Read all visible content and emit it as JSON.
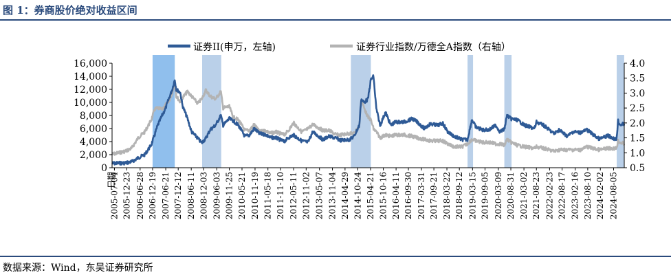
{
  "figure_title": "图 1：券商股价绝对收益区间",
  "source_note": "数据来源：Wind，东吴证券研究所",
  "colors": {
    "title": "#2a4a7c",
    "series_left": "#2e5a96",
    "series_right": "#b3b3b3",
    "band": "#a9c4e3",
    "band_strong": "#7db4ea"
  },
  "chart_data": {
    "type": "line",
    "title": "",
    "xlabel": "日期",
    "y_left": {
      "label": "",
      "ylim": [
        0,
        16000
      ],
      "ticks": [
        "0",
        "2,000",
        "4,000",
        "6,000",
        "8,000",
        "10,000",
        "12,000",
        "14,000",
        "16,000"
      ]
    },
    "y_right": {
      "label": "",
      "ylim": [
        0.5,
        4.0
      ],
      "ticks": [
        "0.5",
        "1.0",
        "1.5",
        "2.0",
        "2.5",
        "3.0",
        "3.5",
        "4.0"
      ]
    },
    "x_range": [
      "2005-06-01",
      "2025-01-01"
    ],
    "x_ticks": [
      "2005-07-04",
      "2005-12-23",
      "2006-06-28",
      "2006-12-19",
      "2007-06-21",
      "2007-12-12",
      "2008-06-11",
      "2008-12-03",
      "2009-06-03",
      "2009-11-25",
      "2010-05-21",
      "2010-11-19",
      "2011-05-18",
      "2011-11-10",
      "2012-05-11",
      "2012-11-02",
      "2013-05-07",
      "2013-11-04",
      "2014-04-29",
      "2014-10-24",
      "2015-04-21",
      "2015-10-16",
      "2016-04-11",
      "2016-09-30",
      "2017-03-31",
      "2017-09-21",
      "2018-03-22",
      "2018-09-12",
      "2019-03-15",
      "2019-09-05",
      "2020-03-09",
      "2020-08-31",
      "2021-03-02",
      "2021-08-23",
      "2022-02-23",
      "2022-08-17",
      "2023-02-16",
      "2023-08-10",
      "2024-02-02",
      "2024-08-05"
    ],
    "legend": {
      "position": "top",
      "entries": [
        "证券II(申万，左轴)",
        "证券行业指数/万德全A指数（右轴）"
      ]
    },
    "shaded_periods": [
      {
        "start": "2006-12-19",
        "end": "2007-10-25"
      },
      {
        "start": "2008-11-10",
        "end": "2009-08-04"
      },
      {
        "start": "2014-07-20",
        "end": "2015-04-25"
      },
      {
        "start": "2019-01-04",
        "end": "2019-03-22"
      },
      {
        "start": "2020-06-01",
        "end": "2020-09-10"
      },
      {
        "start": "2024-09-18",
        "end": "2024-12-31"
      }
    ],
    "series": [
      {
        "name": "证券II(申万，左轴)",
        "axis": "left",
        "points": [
          [
            "2005-06-01",
            650
          ],
          [
            "2005-09-01",
            700
          ],
          [
            "2005-12-01",
            720
          ],
          [
            "2006-03-01",
            900
          ],
          [
            "2006-06-01",
            1500
          ],
          [
            "2006-09-01",
            2000
          ],
          [
            "2006-12-01",
            3500
          ],
          [
            "2007-01-15",
            5000
          ],
          [
            "2007-03-01",
            6500
          ],
          [
            "2007-05-01",
            8000
          ],
          [
            "2007-06-15",
            9000
          ],
          [
            "2007-08-01",
            10500
          ],
          [
            "2007-09-20",
            12000
          ],
          [
            "2007-10-25",
            13500
          ],
          [
            "2007-11-15",
            12000
          ],
          [
            "2008-01-10",
            11500
          ],
          [
            "2008-02-10",
            9500
          ],
          [
            "2008-04-20",
            7500
          ],
          [
            "2008-06-15",
            5500
          ],
          [
            "2008-09-10",
            4500
          ],
          [
            "2008-11-04",
            3800
          ],
          [
            "2009-01-01",
            4500
          ],
          [
            "2009-03-01",
            5800
          ],
          [
            "2009-05-15",
            6500
          ],
          [
            "2009-07-30",
            8000
          ],
          [
            "2009-08-30",
            6500
          ],
          [
            "2009-11-25",
            7500
          ],
          [
            "2010-01-15",
            7200
          ],
          [
            "2010-04-01",
            6500
          ],
          [
            "2010-06-30",
            4800
          ],
          [
            "2010-09-01",
            5000
          ],
          [
            "2010-11-08",
            6000
          ],
          [
            "2011-01-20",
            5200
          ],
          [
            "2011-04-15",
            5100
          ],
          [
            "2011-06-20",
            4600
          ],
          [
            "2011-09-01",
            4600
          ],
          [
            "2011-12-30",
            4000
          ],
          [
            "2012-03-01",
            4600
          ],
          [
            "2012-05-10",
            5000
          ],
          [
            "2012-09-01",
            4100
          ],
          [
            "2012-11-30",
            3900
          ],
          [
            "2013-02-01",
            5500
          ],
          [
            "2013-06-25",
            4300
          ],
          [
            "2013-09-15",
            4800
          ],
          [
            "2013-12-30",
            4500
          ],
          [
            "2014-03-01",
            4200
          ],
          [
            "2014-07-01",
            4300
          ],
          [
            "2014-09-01",
            4800
          ],
          [
            "2014-11-15",
            6500
          ],
          [
            "2014-12-10",
            10500
          ],
          [
            "2015-01-20",
            10000
          ],
          [
            "2015-03-15",
            10500
          ],
          [
            "2015-04-25",
            13500
          ],
          [
            "2015-06-01",
            14000
          ],
          [
            "2015-07-10",
            9000
          ],
          [
            "2015-09-01",
            6500
          ],
          [
            "2015-11-15",
            8500
          ],
          [
            "2016-01-28",
            6500
          ],
          [
            "2016-04-01",
            7000
          ],
          [
            "2016-08-01",
            7000
          ],
          [
            "2016-11-25",
            7500
          ],
          [
            "2017-02-01",
            7000
          ],
          [
            "2017-05-10",
            6000
          ],
          [
            "2017-08-01",
            6700
          ],
          [
            "2017-11-15",
            6500
          ],
          [
            "2018-01-25",
            6800
          ],
          [
            "2018-04-01",
            5500
          ],
          [
            "2018-07-01",
            4800
          ],
          [
            "2018-10-18",
            4300
          ],
          [
            "2019-01-03",
            4300
          ],
          [
            "2019-03-07",
            7400
          ],
          [
            "2019-05-01",
            6200
          ],
          [
            "2019-08-01",
            5800
          ],
          [
            "2019-11-01",
            5800
          ],
          [
            "2020-02-03",
            6500
          ],
          [
            "2020-04-01",
            5500
          ],
          [
            "2020-06-01",
            5900
          ],
          [
            "2020-07-09",
            8000
          ],
          [
            "2020-09-01",
            7500
          ],
          [
            "2020-12-01",
            7300
          ],
          [
            "2021-03-10",
            6500
          ],
          [
            "2021-07-28",
            6000
          ],
          [
            "2021-08-25",
            7000
          ],
          [
            "2021-12-01",
            6500
          ],
          [
            "2022-04-27",
            5200
          ],
          [
            "2022-07-05",
            5800
          ],
          [
            "2022-10-31",
            4800
          ],
          [
            "2023-01-15",
            5500
          ],
          [
            "2023-05-01",
            5400
          ],
          [
            "2023-07-31",
            5800
          ],
          [
            "2023-10-20",
            5100
          ],
          [
            "2024-01-20",
            4400
          ],
          [
            "2024-05-20",
            4900
          ],
          [
            "2024-09-13",
            4300
          ],
          [
            "2024-10-08",
            7200
          ],
          [
            "2024-11-01",
            6600
          ],
          [
            "2024-12-31",
            6700
          ]
        ]
      },
      {
        "name": "证券行业指数/万德全A指数（右轴）",
        "axis": "right",
        "points": [
          [
            "2005-06-01",
            0.95
          ],
          [
            "2005-09-01",
            1.0
          ],
          [
            "2005-12-01",
            1.05
          ],
          [
            "2006-03-01",
            1.15
          ],
          [
            "2006-06-01",
            1.5
          ],
          [
            "2006-09-01",
            1.7
          ],
          [
            "2006-12-01",
            2.1
          ],
          [
            "2007-01-15",
            2.45
          ],
          [
            "2007-03-01",
            2.5
          ],
          [
            "2007-05-01",
            2.45
          ],
          [
            "2007-06-15",
            2.6
          ],
          [
            "2007-08-01",
            2.7
          ],
          [
            "2007-09-20",
            3.0
          ],
          [
            "2007-10-25",
            3.4
          ],
          [
            "2007-11-15",
            2.9
          ],
          [
            "2008-01-10",
            2.7
          ],
          [
            "2008-02-10",
            2.85
          ],
          [
            "2008-04-20",
            3.05
          ],
          [
            "2008-06-15",
            2.9
          ],
          [
            "2008-09-10",
            2.65
          ],
          [
            "2008-11-04",
            2.8
          ],
          [
            "2009-01-01",
            3.1
          ],
          [
            "2009-03-01",
            2.9
          ],
          [
            "2009-05-15",
            2.8
          ],
          [
            "2009-07-30",
            3.05
          ],
          [
            "2009-08-30",
            2.5
          ],
          [
            "2009-11-25",
            2.55
          ],
          [
            "2010-01-15",
            2.2
          ],
          [
            "2010-04-01",
            2.1
          ],
          [
            "2010-06-30",
            1.75
          ],
          [
            "2010-09-01",
            1.75
          ],
          [
            "2010-11-08",
            1.95
          ],
          [
            "2011-01-20",
            1.7
          ],
          [
            "2011-04-15",
            1.75
          ],
          [
            "2011-06-20",
            1.65
          ],
          [
            "2011-09-01",
            1.7
          ],
          [
            "2011-12-30",
            1.6
          ],
          [
            "2012-03-01",
            1.75
          ],
          [
            "2012-05-10",
            2.0
          ],
          [
            "2012-09-01",
            1.7
          ],
          [
            "2012-11-30",
            1.8
          ],
          [
            "2013-02-01",
            1.95
          ],
          [
            "2013-06-25",
            1.75
          ],
          [
            "2013-09-15",
            1.75
          ],
          [
            "2013-12-30",
            1.6
          ],
          [
            "2014-03-01",
            1.6
          ],
          [
            "2014-07-01",
            1.65
          ],
          [
            "2014-09-01",
            1.65
          ],
          [
            "2014-11-15",
            1.9
          ],
          [
            "2014-12-10",
            2.8
          ],
          [
            "2015-01-20",
            2.5
          ],
          [
            "2015-03-15",
            2.2
          ],
          [
            "2015-04-25",
            2.1
          ],
          [
            "2015-06-01",
            1.8
          ],
          [
            "2015-07-10",
            1.7
          ],
          [
            "2015-09-01",
            1.5
          ],
          [
            "2015-11-15",
            1.6
          ],
          [
            "2016-01-28",
            1.55
          ],
          [
            "2016-04-01",
            1.6
          ],
          [
            "2016-08-01",
            1.6
          ],
          [
            "2016-11-25",
            1.55
          ],
          [
            "2017-02-01",
            1.5
          ],
          [
            "2017-05-10",
            1.45
          ],
          [
            "2017-08-01",
            1.4
          ],
          [
            "2017-11-15",
            1.4
          ],
          [
            "2018-01-25",
            1.4
          ],
          [
            "2018-04-01",
            1.3
          ],
          [
            "2018-07-01",
            1.2
          ],
          [
            "2018-10-18",
            1.2
          ],
          [
            "2019-01-03",
            1.3
          ],
          [
            "2019-03-07",
            1.45
          ],
          [
            "2019-05-01",
            1.4
          ],
          [
            "2019-08-01",
            1.35
          ],
          [
            "2019-11-01",
            1.35
          ],
          [
            "2020-02-03",
            1.3
          ],
          [
            "2020-04-01",
            1.3
          ],
          [
            "2020-06-01",
            1.25
          ],
          [
            "2020-07-09",
            1.45
          ],
          [
            "2020-09-01",
            1.35
          ],
          [
            "2020-12-01",
            1.25
          ],
          [
            "2021-03-10",
            1.2
          ],
          [
            "2021-07-28",
            1.15
          ],
          [
            "2021-08-25",
            1.2
          ],
          [
            "2021-12-01",
            1.15
          ],
          [
            "2022-04-27",
            1.05
          ],
          [
            "2022-07-05",
            1.1
          ],
          [
            "2022-10-31",
            1.1
          ],
          [
            "2023-01-15",
            1.1
          ],
          [
            "2023-05-01",
            1.1
          ],
          [
            "2023-07-31",
            1.2
          ],
          [
            "2023-10-20",
            1.15
          ],
          [
            "2024-01-20",
            1.1
          ],
          [
            "2024-05-20",
            1.15
          ],
          [
            "2024-09-13",
            1.15
          ],
          [
            "2024-10-08",
            1.4
          ],
          [
            "2024-11-01",
            1.35
          ],
          [
            "2024-12-31",
            1.3
          ]
        ]
      }
    ]
  }
}
